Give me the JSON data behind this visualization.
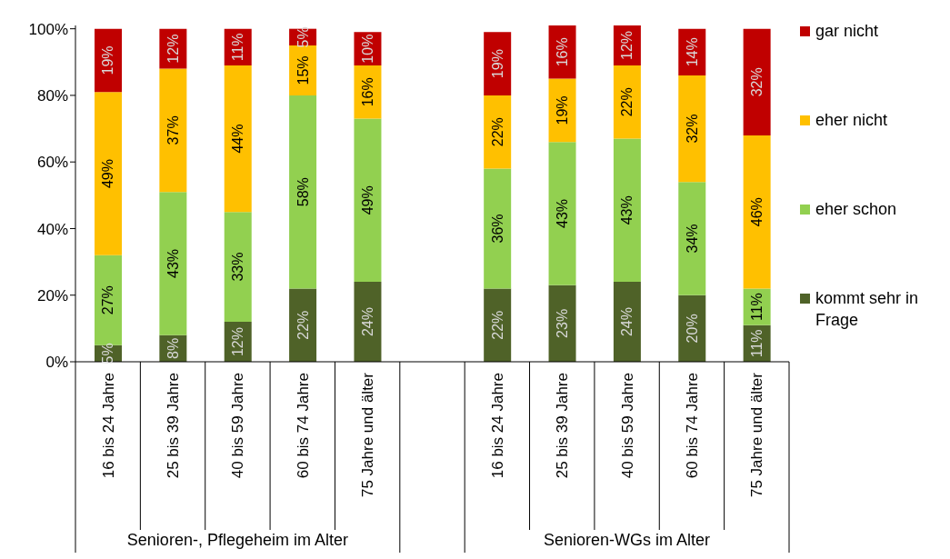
{
  "chart_data": {
    "type": "bar",
    "stacked": true,
    "categories": [
      "16 bis 24 Jahre",
      "25 bis 39 Jahre",
      "40 bis 59 Jahre",
      "60 bis 74 Jahre",
      "75 Jahre und älter",
      null,
      "16 bis 24 Jahre",
      "25 bis 39 Jahre",
      "40 bis 59 Jahre",
      "60 bis 74 Jahre",
      "75 Jahre und älter"
    ],
    "series": [
      {
        "name": "kommt sehr in Frage",
        "color": "#4f6228",
        "values": [
          5,
          8,
          12,
          22,
          24,
          null,
          22,
          23,
          24,
          20,
          11
        ],
        "value_labels": [
          "5%",
          "8%",
          "12%",
          "22%",
          "24%",
          null,
          "22%",
          "23%",
          "24%",
          "20%",
          "11%"
        ]
      },
      {
        "name": "eher schon",
        "color": "#92d050",
        "values": [
          27,
          43,
          33,
          58,
          49,
          null,
          36,
          43,
          43,
          34,
          11
        ],
        "value_labels": [
          "27%",
          "43%",
          "33%",
          "58%",
          "49%",
          null,
          "36%",
          "43%",
          "43%",
          "34%",
          "11%"
        ]
      },
      {
        "name": "eher nicht",
        "color": "#ffc000",
        "values": [
          49,
          37,
          44,
          15,
          16,
          null,
          22,
          19,
          22,
          32,
          46
        ],
        "value_labels": [
          "49%",
          "37%",
          "44%",
          "15%",
          "16%",
          null,
          "22%",
          "19%",
          "22%",
          "32%",
          "46%"
        ]
      },
      {
        "name": "gar nicht",
        "color": "#c00000",
        "values": [
          19,
          12,
          11,
          5,
          10,
          null,
          19,
          16,
          12,
          14,
          32
        ],
        "value_labels": [
          "19%",
          "12%",
          "11%",
          "5%",
          "10%",
          null,
          "19%",
          "16%",
          "12%",
          "14%",
          "32%"
        ]
      }
    ],
    "ylim": [
      0,
      101
    ],
    "yticks": [
      {
        "value": 0,
        "label": "0%"
      },
      {
        "value": 20,
        "label": "20%"
      },
      {
        "value": 40,
        "label": "40%"
      },
      {
        "value": 60,
        "label": "60%"
      },
      {
        "value": 80,
        "label": "80%"
      },
      {
        "value": 100,
        "label": "100%"
      }
    ],
    "annotations": [
      "Senioren-, Pflegeheim im Alter",
      "Senioren-WGs im Alter"
    ],
    "legend": "right"
  }
}
